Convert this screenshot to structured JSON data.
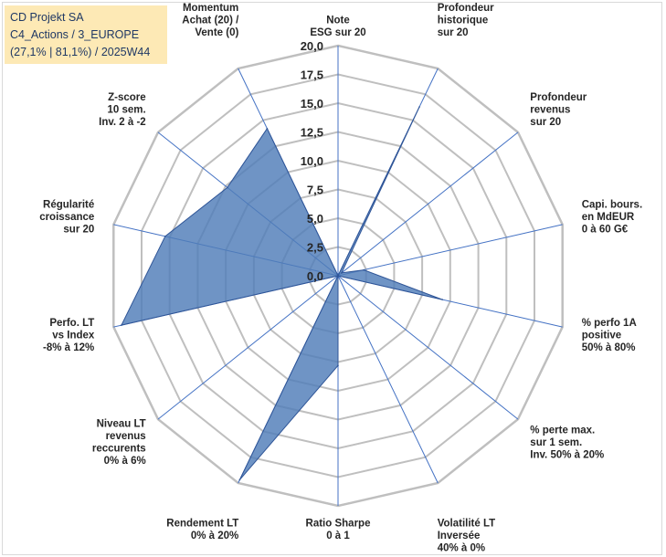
{
  "info": {
    "line1": "CD Projekt SA",
    "line2": "C4_Actions / 3_EUROPE",
    "line3": "(27,1% | 81,1%) / 2025W44"
  },
  "colors": {
    "fill": "#4f7db8",
    "stroke": "#2f5597",
    "grid": "#bfbfbf",
    "spoke": "#4472c4",
    "info_bg": "#fde9b5",
    "info_text": "#1f3864"
  },
  "chart_data": {
    "type": "radar",
    "title": "",
    "rmin": 0,
    "rmax": 20,
    "tick_step": 2.5,
    "tick_labels": [
      "0,0",
      "2,5",
      "5,0",
      "7,5",
      "10,0",
      "12,5",
      "15,0",
      "17,5",
      "20,0"
    ],
    "categories": [
      [
        "Note",
        "ESG sur 20"
      ],
      [
        "Profondeur",
        "historique",
        "sur 20"
      ],
      [
        "Profondeur",
        "revenus",
        "sur 20"
      ],
      [
        "Capi. bours.",
        "en MdEUR",
        "0 à 60 G€"
      ],
      [
        "% perfo 1A",
        "positive",
        "50% à 80%"
      ],
      [
        "% perte max.",
        "sur 1 sem.",
        "Inv. 50% à 20%"
      ],
      [
        "Volatilité LT",
        "Inversée",
        "40% à 0%"
      ],
      [
        "Ratio Sharpe",
        "0 à 1"
      ],
      [
        "Rendement LT",
        "0% à 20%"
      ],
      [
        "Niveau LT",
        "revenus",
        "reccurents",
        "0% à 6%"
      ],
      [
        "Perfo. LT",
        "vs Index",
        "-8% à 12%"
      ],
      [
        "Régularité",
        "croissance",
        "sur 20"
      ],
      [
        "Z-score",
        "10 sem.",
        "Inv. 2 à -2"
      ],
      [
        "Momentum",
        "Achat (20) /",
        "Vente (0)"
      ]
    ],
    "series": [
      {
        "name": "CD Projekt SA",
        "values": [
          0,
          16.3,
          0.4,
          2.3,
          9.3,
          0,
          0,
          7.8,
          19.7,
          0,
          19.3,
          15.4,
          12.3,
          14.2
        ]
      }
    ]
  }
}
